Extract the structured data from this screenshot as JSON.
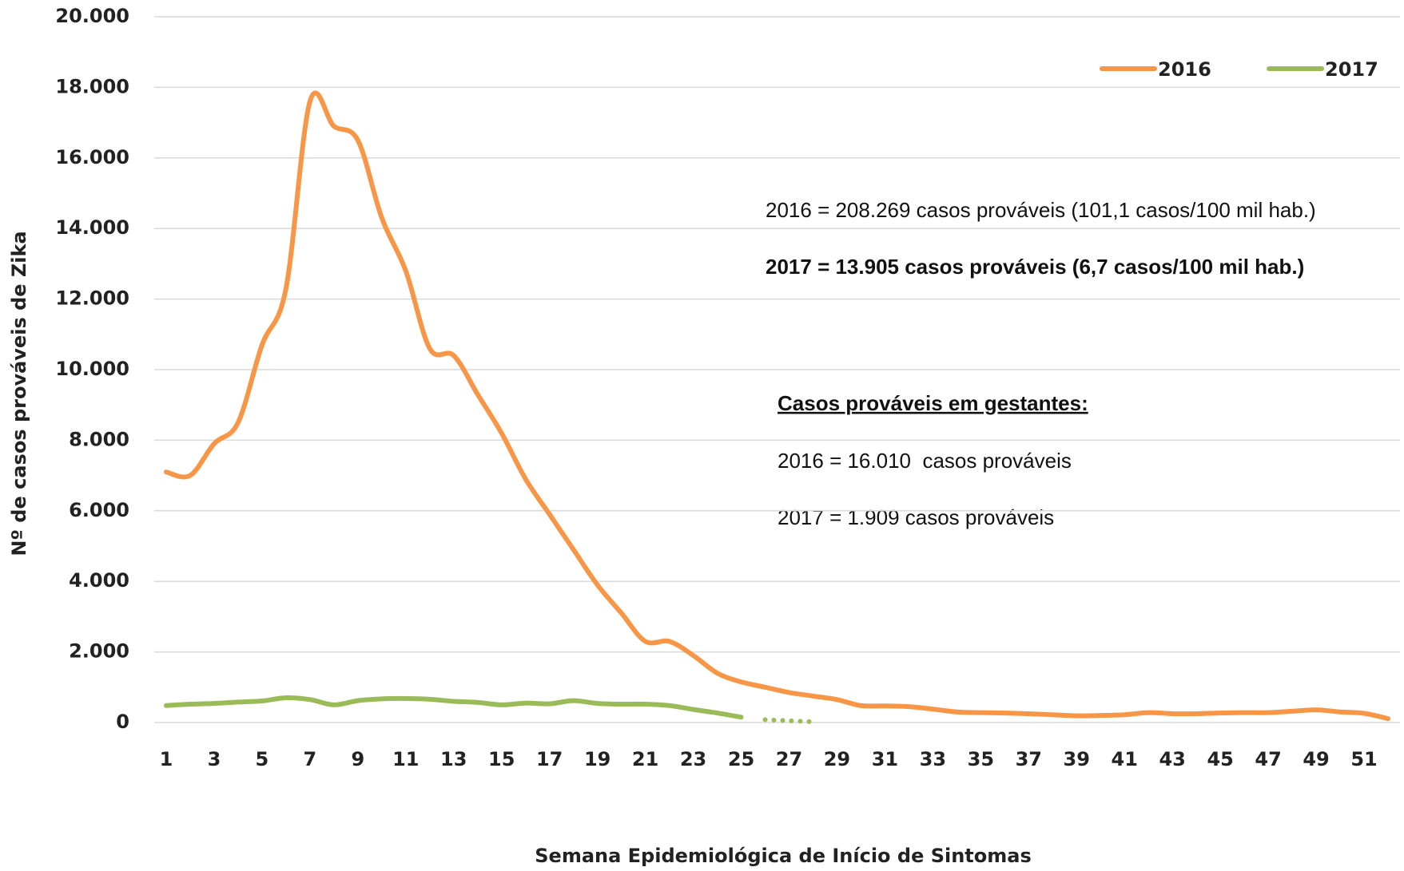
{
  "chart_data": {
    "type": "line",
    "x_label": "Semana Epidemiológica de Início de Sintomas",
    "y_label": "Nº de casos prováveis de Zika",
    "x": [
      1,
      2,
      3,
      4,
      5,
      6,
      7,
      8,
      9,
      10,
      11,
      12,
      13,
      14,
      15,
      16,
      17,
      18,
      19,
      20,
      21,
      22,
      23,
      24,
      25,
      26,
      27,
      28,
      29,
      30,
      31,
      32,
      33,
      34,
      35,
      36,
      37,
      38,
      39,
      40,
      41,
      42,
      43,
      44,
      45,
      46,
      47,
      48,
      49,
      50,
      51,
      52
    ],
    "xlim": [
      0.5,
      52.5
    ],
    "xticks": [
      1,
      3,
      5,
      7,
      9,
      11,
      13,
      15,
      17,
      19,
      21,
      23,
      25,
      27,
      29,
      31,
      33,
      35,
      37,
      39,
      41,
      43,
      45,
      47,
      49,
      51
    ],
    "ylim": [
      0,
      20000
    ],
    "yticks": [
      0,
      {
        "value": 2000,
        "label": "2.000"
      },
      {
        "value": 4000,
        "label": "4.000"
      },
      {
        "value": 6000,
        "label": "6.000"
      },
      {
        "value": 8000,
        "label": "8.000"
      },
      {
        "value": 10000,
        "label": "10.000"
      },
      {
        "value": 12000,
        "label": "12.000"
      },
      {
        "value": 14000,
        "label": "14.000"
      },
      {
        "value": 16000,
        "label": "16.000"
      },
      {
        "value": 18000,
        "label": "18.000"
      },
      {
        "value": 20000,
        "label": "20.000"
      }
    ],
    "grid": true,
    "legend": "top-right",
    "series": [
      {
        "name": "2016",
        "color": "#f79646",
        "values": [
          7100,
          7000,
          7900,
          8500,
          10700,
          12300,
          17600,
          16900,
          16500,
          14300,
          12800,
          10600,
          10400,
          9300,
          8200,
          6900,
          5900,
          4900,
          3900,
          3100,
          2300,
          2300,
          1900,
          1400,
          1150,
          1000,
          850,
          750,
          650,
          480,
          470,
          450,
          380,
          300,
          280,
          270,
          250,
          220,
          190,
          200,
          220,
          280,
          250,
          250,
          270,
          280,
          280,
          320,
          360,
          300,
          260,
          110
        ]
      },
      {
        "name": "2017",
        "color": "#9bbb59",
        "dotted_after_x": 25,
        "values": [
          480,
          520,
          540,
          580,
          610,
          700,
          650,
          500,
          620,
          670,
          680,
          660,
          600,
          570,
          500,
          550,
          530,
          620,
          540,
          520,
          520,
          480,
          370,
          270,
          150,
          80,
          50,
          20,
          null,
          null,
          null,
          null,
          null,
          null,
          null,
          null,
          null,
          null,
          null,
          null,
          null,
          null,
          null,
          null,
          null,
          null,
          null,
          null,
          null,
          null,
          null,
          null
        ]
      }
    ],
    "annotations": [
      "2016 = 208.269 casos prováveis (101,1 casos/100 mil hab.)",
      "2017 = 13.905 casos prováveis (6,7 casos/100 mil hab.)",
      "Casos prováveis em gestantes:",
      "2016 = 16.010  casos prováveis",
      "2017 = 1.909 casos prováveis"
    ]
  }
}
